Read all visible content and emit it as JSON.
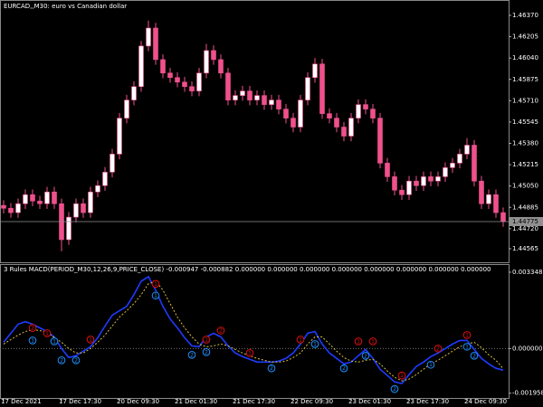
{
  "chart_data": [
    {
      "type": "candlestick",
      "title": "EURCAD,,M30:  euro vs Canadian dollar",
      "up_color": "#ffffff",
      "down_color": "#f0508c",
      "open": [
        1.449,
        1.44878,
        1.44844,
        1.44913,
        1.44983,
        1.44934,
        1.44913,
        1.45004,
        1.44913,
        1.44635,
        1.44809,
        1.44913,
        1.44844,
        1.45004,
        1.45053,
        1.45157,
        1.45297,
        1.45575,
        1.45715,
        1.45819,
        1.46133,
        1.46272,
        1.46028,
        1.45924,
        1.45889,
        1.45854,
        1.45819,
        1.45785,
        1.45924,
        1.46098,
        1.46028,
        1.45924,
        1.45715,
        1.4575,
        1.45785,
        1.45715,
        1.4575,
        1.4568,
        1.45715,
        1.45645,
        1.45575,
        1.45506,
        1.45715,
        1.45889,
        1.45994,
        1.4561,
        1.45575,
        1.45506,
        1.45436,
        1.45575,
        1.4568,
        1.45645,
        1.45575,
        1.45227,
        1.45122,
        1.45018,
        1.44983,
        1.45088,
        1.45053,
        1.45122,
        1.45088,
        1.45122,
        1.45192,
        1.45227,
        1.45297,
        1.45366,
        1.45088,
        1.44913,
        1.44983,
        1.44844
      ],
      "high": [
        1.4494,
        1.44918,
        1.44953,
        1.45023,
        1.45023,
        1.44974,
        1.45044,
        1.45044,
        1.44953,
        1.44849,
        1.44953,
        1.44953,
        1.45044,
        1.45093,
        1.45197,
        1.45337,
        1.45615,
        1.45755,
        1.45859,
        1.46173,
        1.4633,
        1.46312,
        1.46068,
        1.45964,
        1.45929,
        1.45894,
        1.45859,
        1.45964,
        1.4615,
        1.46138,
        1.46068,
        1.45964,
        1.4579,
        1.45825,
        1.45825,
        1.4579,
        1.4579,
        1.45755,
        1.45755,
        1.45685,
        1.45615,
        1.45755,
        1.45929,
        1.4604,
        1.46034,
        1.4565,
        1.45615,
        1.45546,
        1.45615,
        1.4572,
        1.4572,
        1.45685,
        1.45615,
        1.45267,
        1.45162,
        1.45058,
        1.45128,
        1.45128,
        1.45162,
        1.45162,
        1.45162,
        1.45232,
        1.45267,
        1.45337,
        1.4542,
        1.45406,
        1.45128,
        1.45023,
        1.45023,
        1.44884
      ],
      "low": [
        1.44838,
        1.44804,
        1.44804,
        1.44873,
        1.44894,
        1.44873,
        1.44873,
        1.44873,
        1.44545,
        1.44595,
        1.44769,
        1.44804,
        1.44804,
        1.44964,
        1.45013,
        1.45117,
        1.45257,
        1.45535,
        1.45675,
        1.45779,
        1.46093,
        1.45988,
        1.45884,
        1.45849,
        1.45814,
        1.45779,
        1.45745,
        1.45745,
        1.45884,
        1.45988,
        1.45884,
        1.45675,
        1.45675,
        1.4571,
        1.45675,
        1.45675,
        1.4564,
        1.4564,
        1.45605,
        1.45535,
        1.45466,
        1.45466,
        1.45675,
        1.45849,
        1.4557,
        1.45535,
        1.45466,
        1.45396,
        1.45396,
        1.45535,
        1.45605,
        1.45535,
        1.45187,
        1.45082,
        1.44978,
        1.44943,
        1.44943,
        1.45013,
        1.45013,
        1.45048,
        1.45048,
        1.45082,
        1.45152,
        1.45187,
        1.45257,
        1.45048,
        1.44873,
        1.44873,
        1.44804,
        1.44735
      ],
      "close": [
        1.44878,
        1.44844,
        1.44913,
        1.44983,
        1.44934,
        1.44913,
        1.45004,
        1.44913,
        1.44635,
        1.44809,
        1.44913,
        1.44844,
        1.45004,
        1.45053,
        1.45157,
        1.45297,
        1.45575,
        1.45715,
        1.45819,
        1.46133,
        1.46272,
        1.46028,
        1.45924,
        1.45889,
        1.45854,
        1.45819,
        1.45785,
        1.45924,
        1.46098,
        1.46028,
        1.45924,
        1.45715,
        1.4575,
        1.45785,
        1.45715,
        1.4575,
        1.4568,
        1.45715,
        1.45645,
        1.45575,
        1.45506,
        1.45715,
        1.45889,
        1.45994,
        1.4561,
        1.45575,
        1.45506,
        1.45436,
        1.45575,
        1.4568,
        1.45645,
        1.45575,
        1.45227,
        1.45122,
        1.45018,
        1.44983,
        1.45088,
        1.45053,
        1.45122,
        1.45088,
        1.45122,
        1.45192,
        1.45227,
        1.45297,
        1.45366,
        1.45088,
        1.44913,
        1.44983,
        1.44844,
        1.44775
      ],
      "current_price": 1.44775,
      "xlim": [
        -0.5,
        69.75
      ],
      "ylim": [
        1.4446,
        1.46482
      ],
      "yticks": [
        {
          "value": 1.4637,
          "label": "1.46370"
        },
        {
          "value": 1.46205,
          "label": "1.46205"
        },
        {
          "value": 1.4604,
          "label": "1.46040"
        },
        {
          "value": 1.45875,
          "label": "1.45875"
        },
        {
          "value": 1.4571,
          "label": "1.45710"
        },
        {
          "value": 1.45545,
          "label": "1.45545"
        },
        {
          "value": 1.4538,
          "label": "1.45380"
        },
        {
          "value": 1.45215,
          "label": "1.45215"
        },
        {
          "value": 1.4505,
          "label": "1.45050"
        },
        {
          "value": 1.44885,
          "label": "1.44885"
        },
        {
          "value": 1.4472,
          "label": "1.44720"
        },
        {
          "value": 1.44565,
          "label": "1.44565"
        }
      ]
    },
    {
      "type": "line",
      "title": "3 Rules MACD(PERIOD_M30,12,26,9,PRICE_CLOSE) -0.000947 -0.000882 0.000000 0.000000 0.000000 0.000000 0.000000 0.000000 0.000000 0.000000",
      "series": [
        {
          "color": "#1e3cff",
          "style": "solid",
          "values": [
            0.000276,
            0.00067,
            0.001064,
            0.001182,
            0.001064,
            0.000906,
            0.000749,
            0.000512,
            0,
            -0.000394,
            -0.000315,
            -0.000118,
            7.9e-05,
            0.000473,
            0.000985,
            0.001458,
            0.001655,
            0.001852,
            0.002364,
            0.002955,
            0.003152,
            0.002561,
            0.001852,
            0.0013,
            0.000906,
            0.000473,
            0.000118,
            7.9e-05,
            0.000512,
            0.00067,
            0.000512,
            0.000118,
            -0.000197,
            -0.000355,
            -0.000473,
            -0.000591,
            -0.000591,
            -0.000591,
            -0.000552,
            -0.000433,
            -0.000197,
            0.000197,
            0.00067,
            0.000749,
            0.000197,
            -0.000197,
            -0.000433,
            -0.00067,
            -0.000591,
            -0.000315,
            -3.9e-05,
            -0.000433,
            -0.000906,
            -0.001182,
            -0.001458,
            -0.001537,
            -0.001143,
            -0.000788,
            -0.000591,
            -0.000355,
            -0.000197,
            0,
            0.000197,
            0.000355,
            0.000355,
            -3.9e-05,
            -0.000433,
            -0.00067,
            -0.000867,
            -0.000947
          ]
        },
        {
          "color": "#d8c040",
          "style": "dotted",
          "values": [
            0.000197,
            0.000394,
            0.000591,
            0.000749,
            0.000827,
            0.000788,
            0.000709,
            0.000473,
            0.000276,
            0,
            -0.000197,
            -0.000197,
            0,
            0.000276,
            0.000591,
            0.000985,
            0.001379,
            0.001655,
            0.00197,
            0.002364,
            0.002837,
            0.002955,
            0.002561,
            0.00197,
            0.001379,
            0.000906,
            0.000512,
            0.000197,
            7.9e-05,
            0.000118,
            0.000197,
            0.000118,
            -3.9e-05,
            -0.000197,
            -0.000315,
            -0.000433,
            -0.000512,
            -0.000591,
            -0.000591,
            -0.000552,
            -0.000394,
            -0.000197,
            0.000197,
            0.000512,
            0.000512,
            0.000197,
            -0.000118,
            -0.000394,
            -0.000552,
            -0.000591,
            -0.000512,
            -0.000473,
            -0.00067,
            -0.000985,
            -0.001261,
            -0.001418,
            -0.00134,
            -0.001143,
            -0.000906,
            -0.00067,
            -0.000512,
            -0.000315,
            -0.000118,
            7.9e-05,
            0.000197,
            0.000276,
            3.9e-05,
            -0.000276,
            -0.000512,
            -0.000882
          ]
        }
      ],
      "signals": [
        {
          "index": 4,
          "value": 0.000906,
          "label": "2",
          "color": "#e01010"
        },
        {
          "index": 6,
          "value": 0.00067,
          "label": "1",
          "color": "#e01010"
        },
        {
          "index": 12,
          "value": 0.000394,
          "label": "1",
          "color": "#e01010"
        },
        {
          "index": 4,
          "value": 0.000355,
          "label": "1",
          "color": "#1e90ff"
        },
        {
          "index": 7,
          "value": 0.000315,
          "label": "1",
          "color": "#1e90ff"
        },
        {
          "index": 8,
          "value": -0.000512,
          "label": "2",
          "color": "#1e90ff"
        },
        {
          "index": 10,
          "value": -0.000512,
          "label": "2",
          "color": "#1e90ff"
        },
        {
          "index": 21,
          "value": 0.002837,
          "label": "1",
          "color": "#e01010"
        },
        {
          "index": 21,
          "value": 0.002325,
          "label": "1",
          "color": "#1e90ff"
        },
        {
          "index": 28,
          "value": 0.000394,
          "label": "1",
          "color": "#e01010"
        },
        {
          "index": 30,
          "value": 0.000788,
          "label": "2",
          "color": "#e01010"
        },
        {
          "index": 26,
          "value": -0.000276,
          "label": "2",
          "color": "#1e90ff"
        },
        {
          "index": 28,
          "value": -0.000158,
          "label": "2",
          "color": "#1e90ff"
        },
        {
          "index": 34,
          "value": -0.000197,
          "label": "1",
          "color": "#e01010"
        },
        {
          "index": 37,
          "value": -0.000867,
          "label": "2",
          "color": "#1e90ff"
        },
        {
          "index": 41,
          "value": 0.000394,
          "label": "1",
          "color": "#e01010"
        },
        {
          "index": 43,
          "value": 0.000197,
          "label": "1",
          "color": "#1e90ff"
        },
        {
          "index": 49,
          "value": 0.000315,
          "label": "1",
          "color": "#e01010"
        },
        {
          "index": 51,
          "value": 0.000315,
          "label": "1",
          "color": "#e01010"
        },
        {
          "index": 47,
          "value": -0.000867,
          "label": "2",
          "color": "#1e90ff"
        },
        {
          "index": 50,
          "value": -0.000315,
          "label": "2",
          "color": "#1e90ff"
        },
        {
          "index": 55,
          "value": -0.001182,
          "label": "1",
          "color": "#e01010"
        },
        {
          "index": 54,
          "value": -0.001773,
          "label": "2",
          "color": "#1e90ff"
        },
        {
          "index": 60,
          "value": 0,
          "label": "2",
          "color": "#e01010"
        },
        {
          "index": 59,
          "value": -0.000709,
          "label": "1",
          "color": "#1e90ff"
        },
        {
          "index": 64,
          "value": 0.000591,
          "label": "1",
          "color": "#e01010"
        },
        {
          "index": 64,
          "value": 7.9e-05,
          "label": "1",
          "color": "#1e90ff"
        },
        {
          "index": 65,
          "value": -0.000315,
          "label": "2",
          "color": "#1e90ff"
        }
      ],
      "xlim": [
        -0.5,
        69.75
      ],
      "ylim": [
        -0.002167,
        0.003664
      ],
      "yticks": [
        0.003348,
        {
          "value": 0,
          "label": "0.000000"
        },
        -0.001958
      ],
      "xticks": [
        {
          "value": 0,
          "label": "17 Dec 2021"
        },
        {
          "value": 8,
          "label": "17 Dec 17:30"
        },
        {
          "value": 16,
          "label": "20 Dec 09:30"
        },
        {
          "value": 24,
          "label": "21 Dec 01:30"
        },
        {
          "value": 32,
          "label": "21 Dec 17:30"
        },
        {
          "value": 40,
          "label": "22 Dec 09:30"
        },
        {
          "value": 48,
          "label": "23 Dec 01:30"
        },
        {
          "value": 56,
          "label": "23 Dec 17:30"
        },
        {
          "value": 64,
          "label": "24 Dec 09:30"
        }
      ]
    }
  ]
}
